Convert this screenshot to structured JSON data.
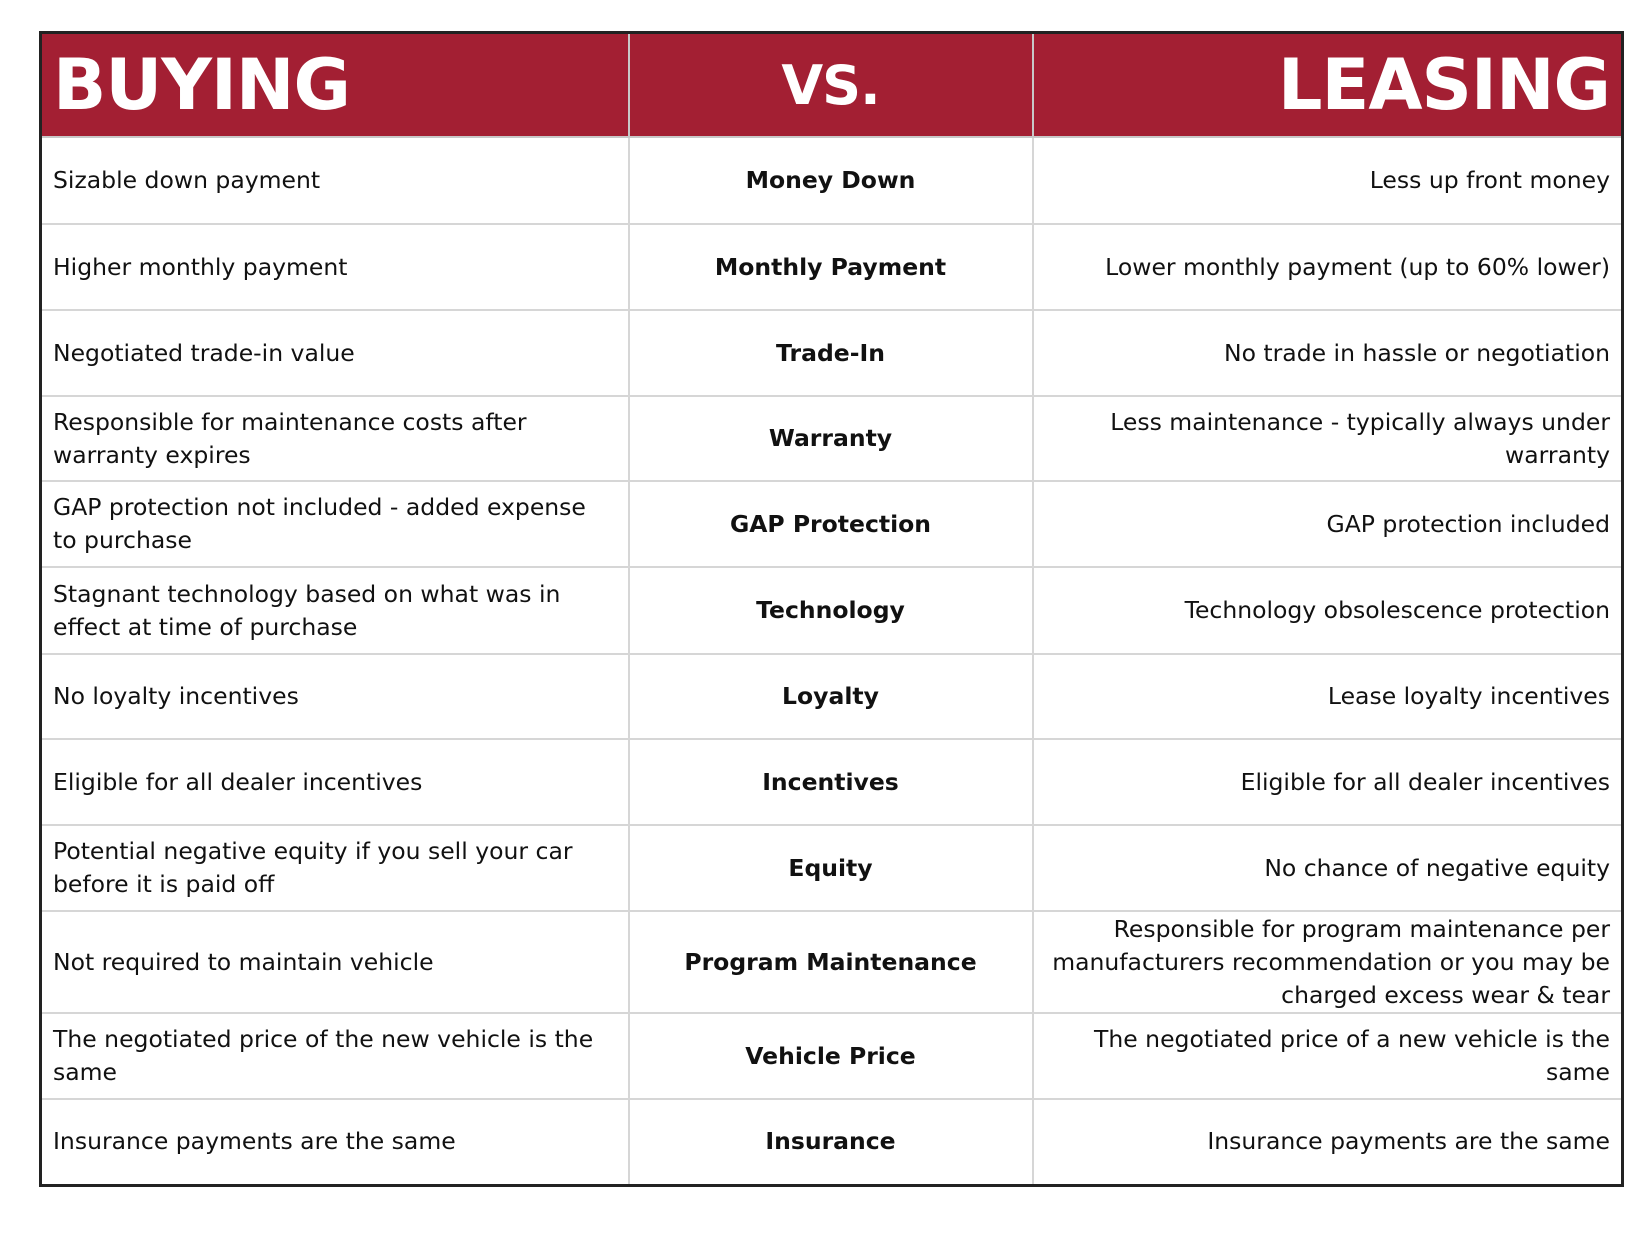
{
  "header": {
    "left": "BUYING",
    "middle": "VS.",
    "right": "LEASING"
  },
  "rows": [
    {
      "buying": "Sizable down payment",
      "feature": "Money Down",
      "leasing": "Less up front money"
    },
    {
      "buying": "Higher monthly payment",
      "feature": "Monthly Payment",
      "leasing": "Lower monthly payment (up to 60% lower)"
    },
    {
      "buying": "Negotiated trade-in value",
      "feature": "Trade-In",
      "leasing": "No trade in hassle or negotiation"
    },
    {
      "buying": "Responsible for maintenance costs after warranty expires",
      "feature": "Warranty",
      "leasing": "Less maintenance - typically always under warranty"
    },
    {
      "buying": "GAP protection not included - added expense to purchase",
      "feature": "GAP Protection",
      "leasing": "GAP protection included"
    },
    {
      "buying": "Stagnant technology based on what was in effect at time of purchase",
      "feature": "Technology",
      "leasing": "Technology obsolescence protection"
    },
    {
      "buying": "No loyalty incentives",
      "feature": "Loyalty",
      "leasing": "Lease loyalty incentives"
    },
    {
      "buying": "Eligible for all dealer incentives",
      "feature": "Incentives",
      "leasing": "Eligible for all dealer incentives"
    },
    {
      "buying": "Potential negative equity if you sell your car before it is paid off",
      "feature": "Equity",
      "leasing": "No chance of negative equity"
    },
    {
      "buying": "Not required to maintain vehicle",
      "feature": "Program Maintenance",
      "leasing": "Responsible for program maintenance per manufacturers recommendation or you may be charged excess wear & tear"
    },
    {
      "buying": "The negotiated price of the new vehicle is the same",
      "feature": "Vehicle Price",
      "leasing": "The negotiated price of a new vehicle is the same"
    },
    {
      "buying": "Insurance payments are the same",
      "feature": "Insurance",
      "leasing": "Insurance payments are the same"
    }
  ]
}
